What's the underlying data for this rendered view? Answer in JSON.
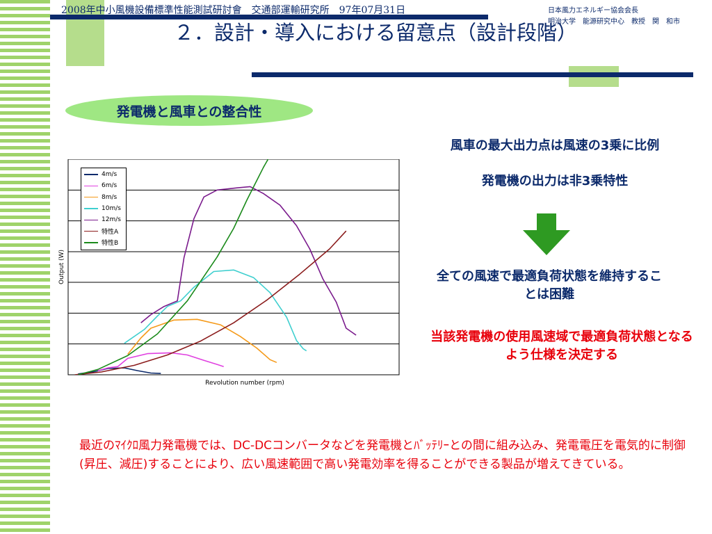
{
  "header": {
    "event_line": "2008年中小風機設備標準性能測試研討會　交通部運輸研究所　97年07月31日",
    "org_line_1": "日本風力エネルギー協会会長",
    "org_line_2": "明治大学　能源研究中心　教授　関　和市"
  },
  "slide": {
    "title": "２．設計・導入における留意点（設計段階）",
    "badge": "発電機と風車との整合性"
  },
  "right_panel": {
    "point_1": "風車の最大出力点は風速の3乗に比例",
    "point_2": "発電機の出力は非3乗特性",
    "arrow_icon": "down-arrow-icon",
    "conclusion_1": "全ての風速で最適負荷状態を維持することは困難",
    "conclusion_2": "当該発電機の使用風速域で最適負荷状態となるよう仕様を決定する"
  },
  "bottom_note": "最近のﾏｲｸﾛ風力発電機では、DC-DCコンバータなどを発電機とﾊﾞｯﾃﾘｰとの間に組み込み、発電電圧を電気的に制御(昇圧、減圧)することにより、広い風速範囲で高い発電効率を得ることができる製品が増えてきている。",
  "colors": {
    "navy": "#0c2a6b",
    "red": "#e8000b",
    "green_arrow": "#2e9a22",
    "pill": "#9fe783"
  },
  "chart_data": {
    "type": "line",
    "xlabel": "Revolution number (rpm)",
    "ylabel": "Output (W)",
    "xlim": [
      0,
      100
    ],
    "ylim": [
      0,
      100
    ],
    "gridlines_y": [
      0,
      14.3,
      28.6,
      42.9,
      57.1,
      71.4,
      85.7,
      100
    ],
    "grid": true,
    "legend_position": "top-left",
    "series": [
      {
        "name": "4m/s",
        "color": "#0c2a6b",
        "points": [
          [
            3,
            0.4
          ],
          [
            8,
            1.5
          ],
          [
            12,
            2.9
          ],
          [
            17,
            3.2
          ],
          [
            21,
            1.9
          ],
          [
            25,
            0.8
          ],
          [
            28,
            0.6
          ]
        ]
      },
      {
        "name": "6m/s",
        "color": "#e040e0",
        "points": [
          [
            9,
            1.9
          ],
          [
            12,
            3.2
          ],
          [
            15,
            3.8
          ],
          [
            18,
            7.6
          ],
          [
            24,
            9.8
          ],
          [
            31,
            10.2
          ],
          [
            36,
            9.2
          ],
          [
            41,
            6.7
          ],
          [
            45,
            4.8
          ],
          [
            47,
            3.8
          ]
        ]
      },
      {
        "name": "8m/s",
        "color": "#f59a1a",
        "points": [
          [
            18,
            9.5
          ],
          [
            22,
            17.1
          ],
          [
            25,
            21.6
          ],
          [
            32,
            25.4
          ],
          [
            39,
            25.7
          ],
          [
            46,
            23.2
          ],
          [
            52,
            17.8
          ],
          [
            57,
            12.4
          ],
          [
            61,
            7.0
          ],
          [
            63,
            5.7
          ]
        ]
      },
      {
        "name": "10m/s",
        "color": "#3fcfcf",
        "points": [
          [
            17,
            14.6
          ],
          [
            23,
            21.0
          ],
          [
            27,
            27.3
          ],
          [
            30,
            31.7
          ],
          [
            34,
            34.3
          ],
          [
            38,
            40.6
          ],
          [
            44,
            47.9
          ],
          [
            50,
            48.6
          ],
          [
            56,
            45.1
          ],
          [
            61,
            38.1
          ],
          [
            66,
            26.7
          ],
          [
            69,
            15.9
          ],
          [
            71,
            12.1
          ],
          [
            72,
            11.1
          ]
        ]
      },
      {
        "name": "12m/s",
        "color": "#7a1a8c",
        "points": [
          [
            22,
            24.1
          ],
          [
            25,
            27.9
          ],
          [
            29,
            31.7
          ],
          [
            33,
            34.3
          ],
          [
            35,
            54.3
          ],
          [
            38,
            72.4
          ],
          [
            41,
            82.5
          ],
          [
            45,
            85.7
          ],
          [
            51,
            86.7
          ],
          [
            55,
            87.3
          ],
          [
            59,
            84.1
          ],
          [
            64,
            78.7
          ],
          [
            69,
            69.2
          ],
          [
            73,
            58.4
          ],
          [
            77,
            44.4
          ],
          [
            81,
            33.7
          ],
          [
            84,
            21.6
          ],
          [
            87,
            18.4
          ]
        ]
      },
      {
        "name": "特性A",
        "color": "#8b1c1c",
        "points": [
          [
            2,
            0
          ],
          [
            10,
            1.3
          ],
          [
            20,
            4.4
          ],
          [
            30,
            9.2
          ],
          [
            40,
            15.6
          ],
          [
            50,
            24.1
          ],
          [
            60,
            34.6
          ],
          [
            70,
            46.7
          ],
          [
            79,
            58.4
          ],
          [
            84,
            66.7
          ]
        ]
      },
      {
        "name": "特性B",
        "color": "#1a8a1a",
        "points": [
          [
            3,
            0
          ],
          [
            9,
            2.5
          ],
          [
            18,
            8.9
          ],
          [
            27,
            19.0
          ],
          [
            36,
            34.3
          ],
          [
            45,
            54.6
          ],
          [
            50,
            67.9
          ],
          [
            54,
            81.0
          ],
          [
            59,
            96.2
          ],
          [
            61,
            101.6
          ]
        ]
      }
    ]
  }
}
